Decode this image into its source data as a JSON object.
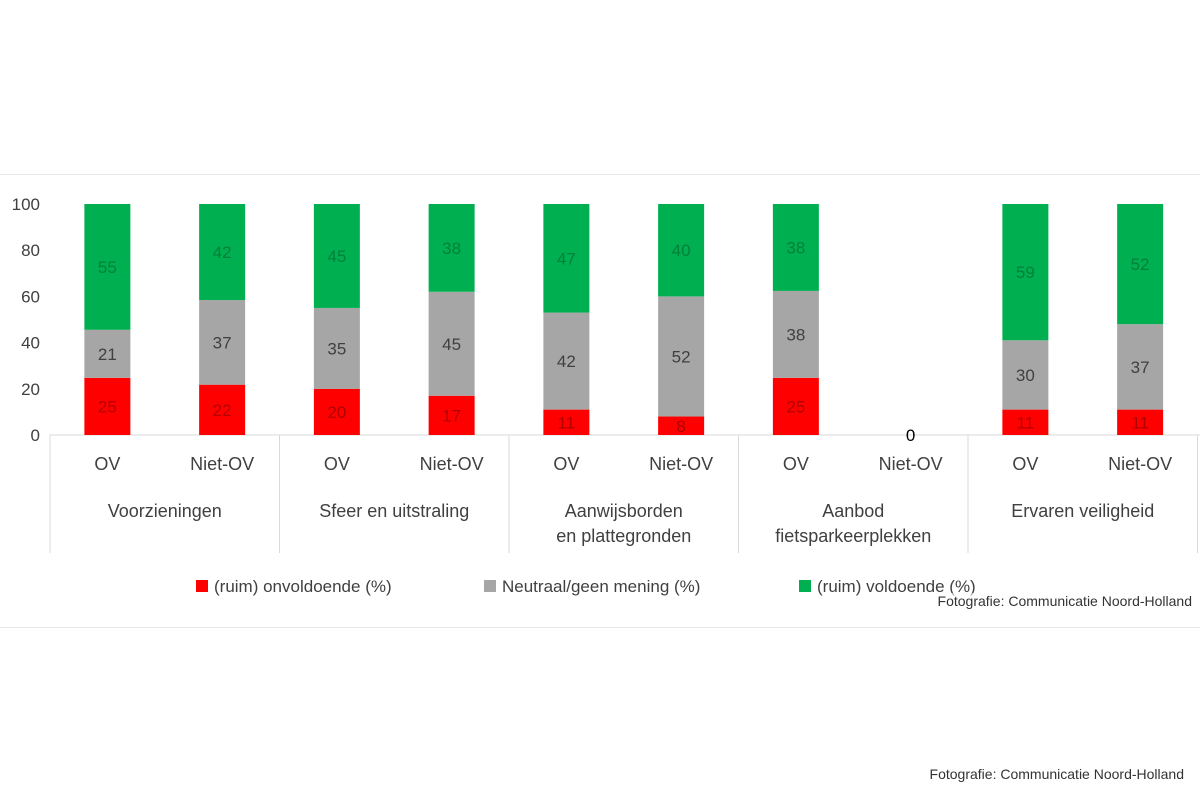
{
  "chart_data": {
    "type": "bar",
    "stacked": true,
    "groups": [
      {
        "label": "Voorzieningen",
        "categories": [
          "OV",
          "Niet-OV"
        ]
      },
      {
        "label": "Sfeer en uitstraling",
        "categories": [
          "OV",
          "Niet-OV"
        ]
      },
      {
        "label": "Aanwijsborden en plattegronden",
        "categories": [
          "OV",
          "Niet-OV"
        ]
      },
      {
        "label": "Aanbod fietsparkeerplekken",
        "categories": [
          "OV",
          "Niet-OV"
        ]
      },
      {
        "label": "Ervaren veiligheid",
        "categories": [
          "OV",
          "Niet-OV"
        ]
      }
    ],
    "series": [
      {
        "name": "(ruim) onvoldoende (%)",
        "color": "#ff0000",
        "values": [
          25,
          22,
          20,
          17,
          11,
          8,
          25,
          0,
          11,
          11
        ]
      },
      {
        "name": "Neutraal/geen mening (%)",
        "color": "#a6a6a6",
        "values": [
          21,
          37,
          35,
          45,
          42,
          52,
          38,
          0,
          30,
          37
        ]
      },
      {
        "name": "(ruim) voldoende (%)",
        "color": "#00b050",
        "values": [
          55,
          42,
          45,
          38,
          47,
          40,
          38,
          0,
          59,
          52
        ]
      }
    ],
    "bar_totals": [
      100,
      100,
      100,
      100,
      100,
      100,
      100,
      0,
      100,
      100
    ],
    "ylim": [
      0,
      100
    ],
    "yticks": [
      0,
      20,
      40,
      60,
      80,
      100
    ],
    "legend_position": "bottom",
    "grid": false
  },
  "credits": {
    "inner": "Fotografie: Communicatie Noord-Holland",
    "bottom": "Fotografie: Communicatie Noord-Holland"
  }
}
